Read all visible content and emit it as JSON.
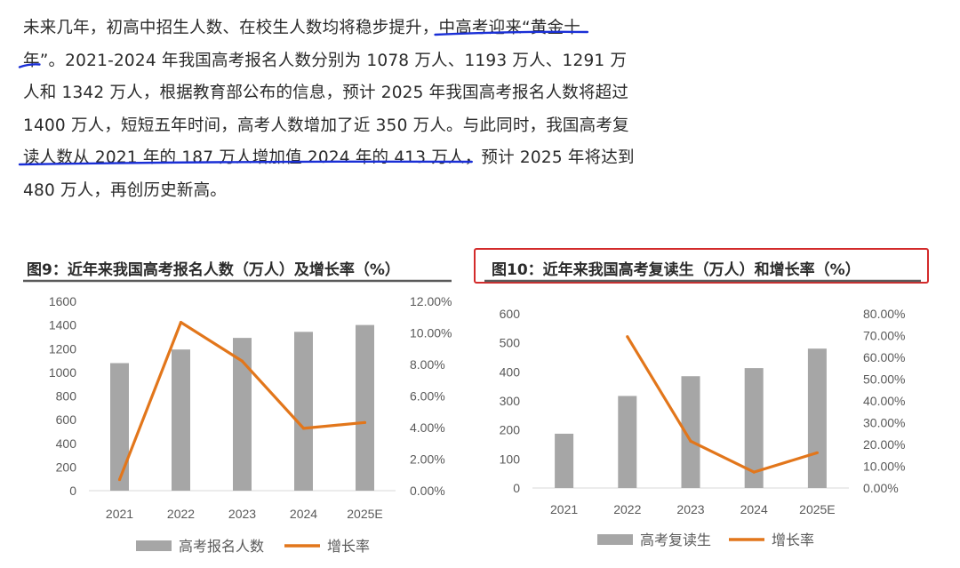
{
  "paragraph": {
    "lines": [
      [
        "未来几年，初高中招生人数、在校生人数均将稳步提升，",
        "中高考迎来“黄金十"
      ],
      [
        "年”",
        "。2021-2024 年我国高考报名人数分别为 1078 万人、1193 万人、1291 万"
      ],
      [
        "人和 1342 万人，根据教育部公布的信息，预计 2025 年我国高考报名人数将超过"
      ],
      [
        "1400 万人，短短五年时间，高考人数增加了近 350 万人。与此同时，我国高考复"
      ],
      [
        "读人数从 2021 年的 187 万人增加值 2024 年的 413 万人",
        "，预计 2025 年将达到"
      ],
      [
        "480 万人，再创历史新高。"
      ]
    ]
  },
  "chart_data": [
    {
      "type": "bar",
      "title": "图9：近年来我国高考报名人数（万人）及增长率（%）",
      "categories": [
        "2021",
        "2022",
        "2023",
        "2024",
        "2025E"
      ],
      "series": [
        {
          "name": "高考报名人数",
          "type": "bar",
          "axis": "left",
          "values": [
            1078,
            1193,
            1291,
            1342,
            1400
          ]
        },
        {
          "name": "增长率",
          "type": "line",
          "axis": "right",
          "values": [
            0.7,
            10.67,
            8.21,
            3.95,
            4.32
          ]
        }
      ],
      "ylim": [
        0,
        1600
      ],
      "y_ticks": [
        "0",
        "200",
        "400",
        "600",
        "800",
        "1000",
        "1200",
        "1400",
        "1600"
      ],
      "y2lim": [
        0,
        12
      ],
      "y2_ticks": [
        "0.00%",
        "2.00%",
        "4.00%",
        "6.00%",
        "8.00%",
        "10.00%",
        "12.00%"
      ],
      "legend": "bottom",
      "grid": false,
      "colors": {
        "bar": "#a6a6a6",
        "line": "#e2761b"
      }
    },
    {
      "type": "bar",
      "title": "图10：近年来我国高考复读生（万人）和增长率（%）",
      "categories": [
        "2021",
        "2022",
        "2023",
        "2024",
        "2025E"
      ],
      "series": [
        {
          "name": "高考复读生",
          "type": "bar",
          "axis": "left",
          "values": [
            187,
            317,
            385,
            413,
            480
          ]
        },
        {
          "name": "增长率",
          "type": "line",
          "axis": "right",
          "values": [
            null,
            69.5,
            21.5,
            7.3,
            16.2
          ]
        }
      ],
      "ylim": [
        0,
        600
      ],
      "y_ticks": [
        "0",
        "100",
        "200",
        "300",
        "400",
        "500",
        "600"
      ],
      "y2lim": [
        0,
        80
      ],
      "y2_ticks": [
        "0.00%",
        "10.00%",
        "20.00%",
        "30.00%",
        "40.00%",
        "50.00%",
        "60.00%",
        "70.00%",
        "80.00%"
      ],
      "legend": "bottom",
      "grid": false,
      "highlighted": true,
      "colors": {
        "bar": "#a6a6a6",
        "line": "#e2761b",
        "highlight_box": "#d32b2b"
      }
    }
  ],
  "colors": {
    "underline": "#1a2fd6",
    "text": "#2a2a2a"
  }
}
